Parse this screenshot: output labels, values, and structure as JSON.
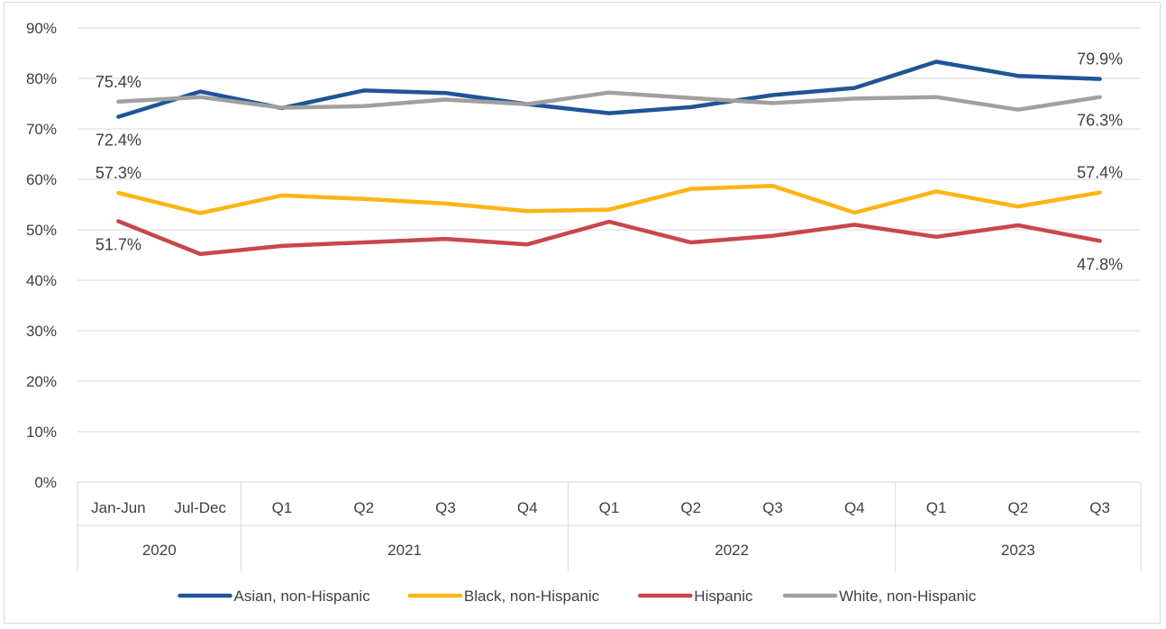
{
  "chart_data": {
    "type": "line",
    "title": "",
    "xlabel": "",
    "ylabel": "",
    "ylim": [
      0,
      90
    ],
    "y_ticks": [
      "0%",
      "10%",
      "20%",
      "30%",
      "40%",
      "50%",
      "60%",
      "70%",
      "80%",
      "90%"
    ],
    "grid": "horizontal",
    "legend_position": "bottom",
    "categories": [
      "Jan-Jun",
      "Jul-Dec",
      "Q1",
      "Q2",
      "Q3",
      "Q4",
      "Q1",
      "Q2",
      "Q3",
      "Q4",
      "Q1",
      "Q2",
      "Q3"
    ],
    "category_groups": [
      {
        "label": "2020",
        "span": 2
      },
      {
        "label": "2021",
        "span": 4
      },
      {
        "label": "2022",
        "span": 4
      },
      {
        "label": "2023",
        "span": 3
      }
    ],
    "series": [
      {
        "name": "Asian, non-Hispanic",
        "color": "#1f5597",
        "values": [
          72.4,
          77.4,
          74.1,
          77.6,
          77.1,
          74.9,
          73.1,
          74.3,
          76.7,
          78.1,
          83.3,
          80.5,
          79.9
        ]
      },
      {
        "name": "Black, non-Hispanic",
        "color": "#fdb515",
        "values": [
          57.3,
          53.3,
          56.8,
          56.1,
          55.2,
          53.7,
          54.0,
          58.1,
          58.7,
          53.4,
          57.6,
          54.6,
          57.4
        ]
      },
      {
        "name": "Hispanic",
        "color": "#c8474b",
        "values": [
          51.7,
          45.2,
          46.8,
          47.5,
          48.2,
          47.1,
          51.6,
          47.5,
          48.8,
          51.0,
          48.6,
          50.9,
          47.8
        ]
      },
      {
        "name": "White, non-Hispanic",
        "color": "#a0a0a0",
        "values": [
          75.4,
          76.3,
          74.2,
          74.5,
          75.8,
          74.9,
          77.2,
          76.1,
          75.1,
          76.0,
          76.3,
          73.8,
          76.3
        ]
      }
    ],
    "data_labels": [
      {
        "text": "75.4%",
        "series": 3,
        "index": 0,
        "place": "above"
      },
      {
        "text": "72.4%",
        "series": 0,
        "index": 0,
        "place": "below"
      },
      {
        "text": "57.3%",
        "series": 1,
        "index": 0,
        "place": "above"
      },
      {
        "text": "51.7%",
        "series": 2,
        "index": 0,
        "place": "below"
      },
      {
        "text": "79.9%",
        "series": 0,
        "index": 12,
        "place": "above"
      },
      {
        "text": "76.3%",
        "series": 3,
        "index": 12,
        "place": "below"
      },
      {
        "text": "57.4%",
        "series": 1,
        "index": 12,
        "place": "above"
      },
      {
        "text": "47.8%",
        "series": 2,
        "index": 12,
        "place": "below"
      }
    ]
  }
}
